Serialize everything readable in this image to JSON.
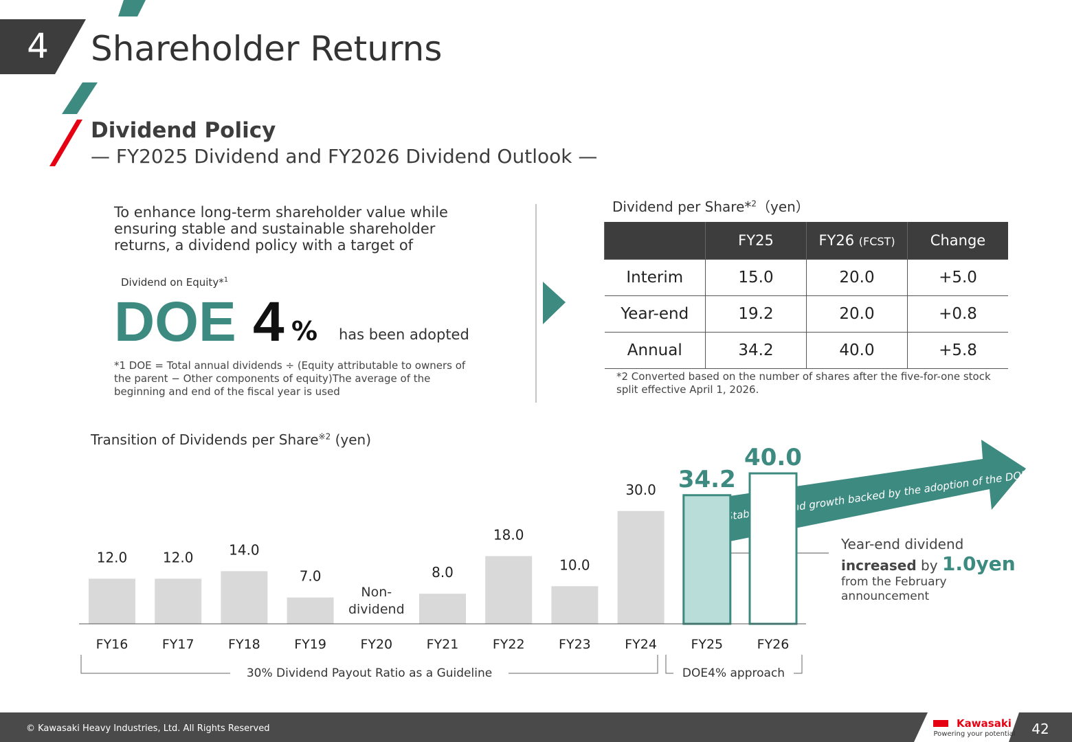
{
  "header": {
    "section_number": "4",
    "title": "Shareholder Returns"
  },
  "subheader": {
    "title": "Dividend Policy",
    "subtitle": "— FY2025 Dividend and FY2026 Dividend Outlook —"
  },
  "policy": {
    "text": "To enhance long-term shareholder value while ensuring stable and sustainable shareholder returns, a dividend policy with a target of",
    "doe_label": "Dividend on Equity*",
    "doe_label_note": "1",
    "doe": "DOE",
    "doe_value": "4",
    "doe_unit": "%",
    "adopted": "has been adopted",
    "note": "*1 DOE = Total annual dividends ÷ (Equity attributable to owners of the parent − Other components of equity)The average of the beginning and end of the fiscal year is used"
  },
  "table": {
    "title": "Dividend per Share*",
    "title_note": "2",
    "unit": "（yen）",
    "columns": [
      "FY25",
      "FY26",
      "Change"
    ],
    "forecast": "(FCST)",
    "rows": [
      [
        "Interim",
        "15.0",
        "20.0",
        "+5.0"
      ],
      [
        "Year-end",
        "19.2",
        "20.0",
        "+0.8"
      ],
      [
        "Annual",
        "34.2",
        "40.0",
        "+5.8"
      ]
    ],
    "note": "*2 Converted based on the number of shares after the five-for-one stock split effective April 1, 2026."
  },
  "chart_data": {
    "type": "bar",
    "title": "Transition of Dividends per Share",
    "title_note": "※2",
    "unit": "(yen)",
    "categories": [
      "FY16",
      "FY17",
      "FY18",
      "FY19",
      "FY20",
      "FY21",
      "FY22",
      "FY23",
      "FY24",
      "FY25",
      "FY26"
    ],
    "values": [
      12,
      12,
      14,
      7,
      null,
      8,
      18,
      10,
      30,
      34.2,
      40
    ],
    "value_labels": [
      "12.0",
      "12.0",
      "14.0",
      "7.0",
      null,
      "8.0",
      "18.0",
      "10.0",
      "30.0",
      "34.2",
      "40.0"
    ],
    "colors": [
      "#d9d9d9",
      "#d9d9d9",
      "#d9d9d9",
      "#d9d9d9",
      "#d9d9d9",
      "#d9d9d9",
      "#d9d9d9",
      "#d9d9d9",
      "#d9d9d9",
      "#b9ddd8",
      "#ffffff"
    ],
    "edge_colors": [
      null,
      null,
      null,
      null,
      null,
      null,
      null,
      null,
      null,
      "#3d8a80",
      "#3d8a80"
    ],
    "ylim": [
      0,
      40
    ],
    "non_dividend": "Non-dividend",
    "groups": [
      "30% Dividend Payout Ratio as a Guideline",
      "DOE4% approach"
    ],
    "arrow_text": "Stable dividend growth backed by the adoption of the DOE policy",
    "callout": {
      "line1": "Year-end dividend",
      "bold": "increased",
      "by": "by",
      "amount": "1.0yen",
      "rest": "from the February announcement"
    }
  },
  "footer": {
    "copyright": "© Kawasaki Heavy Industries, Ltd. All Rights Reserved",
    "brand": "Kawasaki",
    "tagline": "Powering your potential",
    "page": "42"
  }
}
